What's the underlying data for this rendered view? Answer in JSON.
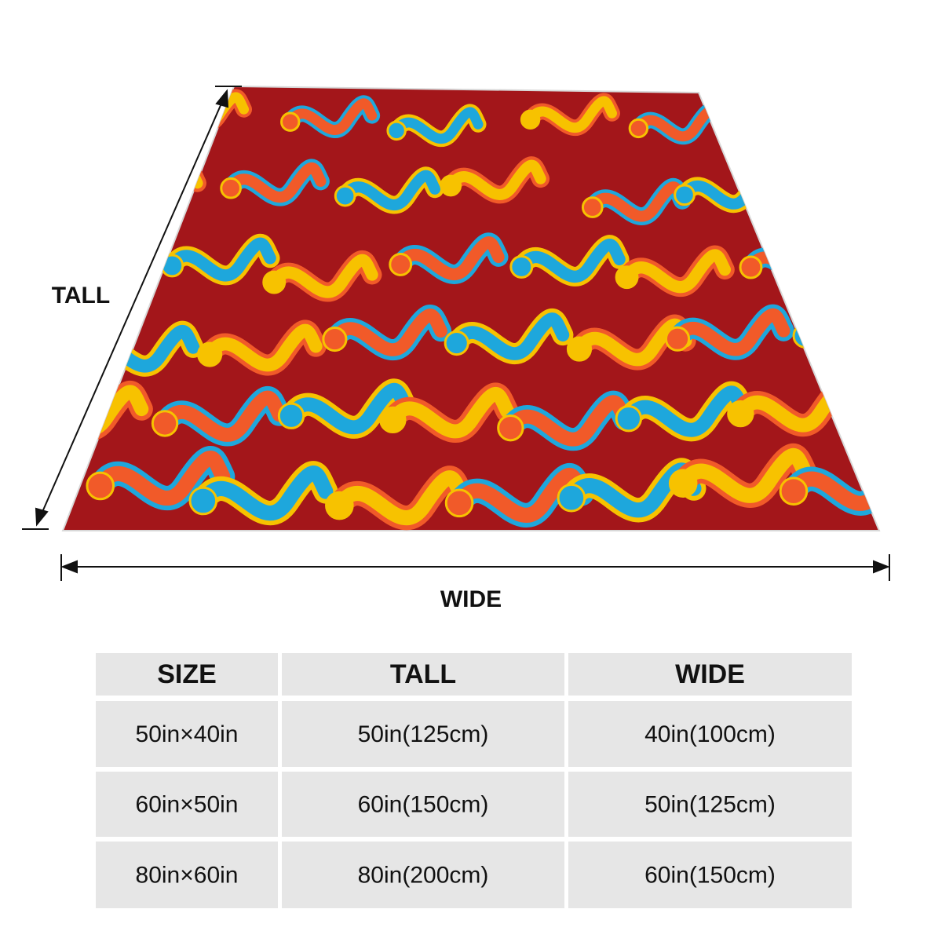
{
  "dimensions": {
    "tall_label": "TALL",
    "wide_label": "WIDE"
  },
  "table": {
    "header": [
      "SIZE",
      "TALL",
      "WIDE"
    ],
    "rows": [
      [
        "50in×40in",
        "50in(125cm)",
        "40in(100cm)"
      ],
      [
        "60in×50in",
        "60in(150cm)",
        "50in(125cm)"
      ],
      [
        "80in×60in",
        "80in(200cm)",
        "60in(150cm)"
      ]
    ]
  }
}
